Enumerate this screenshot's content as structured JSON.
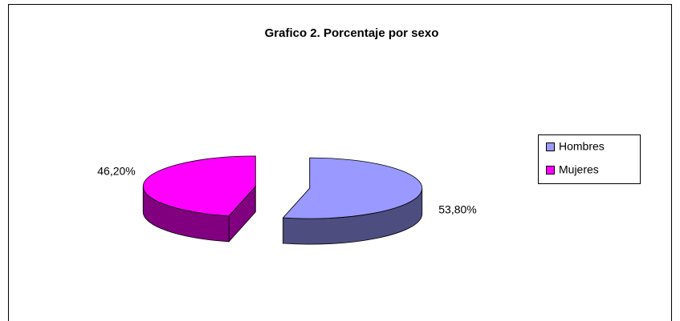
{
  "chart_data": {
    "type": "pie",
    "title": "Grafico 2. Porcentaje por sexo",
    "categories": [
      "Hombres",
      "Mujeres"
    ],
    "values": [
      53.8,
      46.2
    ],
    "value_labels": [
      "53,80%",
      "46,20%"
    ],
    "colors": [
      "#9999ff",
      "#ff00ff"
    ],
    "side_colors": [
      "#4d4d80",
      "#800080"
    ],
    "legend": "right"
  }
}
